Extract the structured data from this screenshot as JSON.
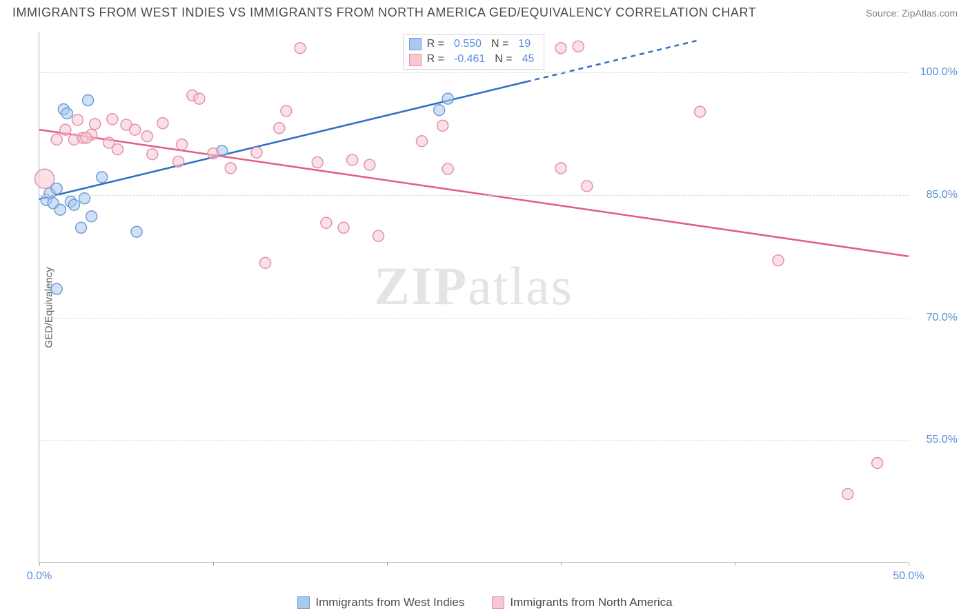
{
  "header": {
    "title": "IMMIGRANTS FROM WEST INDIES VS IMMIGRANTS FROM NORTH AMERICA GED/EQUIVALENCY CORRELATION CHART",
    "source": "Source: ZipAtlas.com"
  },
  "chart": {
    "type": "scatter",
    "y_label": "GED/Equivalency",
    "background_color": "#ffffff",
    "grid_color": "#d8d8d8",
    "axis_color": "#b0b0b0",
    "tick_color": "#5a8ed8",
    "xlim": [
      0,
      50
    ],
    "ylim": [
      40,
      105
    ],
    "x_ticks": [
      {
        "pos": 0.0,
        "label": "0.0%"
      },
      {
        "pos": 50.0,
        "label": "50.0%"
      }
    ],
    "x_minor_ticks": [
      10,
      20,
      30,
      40
    ],
    "y_gridlines": [
      {
        "val": 100.0,
        "label": "100.0%"
      },
      {
        "val": 85.0,
        "label": "85.0%"
      },
      {
        "val": 70.0,
        "label": "70.0%"
      },
      {
        "val": 55.0,
        "label": "55.0%"
      }
    ],
    "watermark": "ZIPatlas",
    "series": [
      {
        "key": "west_indies",
        "label": "Immigrants from West Indies",
        "fill": "#a9c9ee",
        "stroke": "#6f9dd6",
        "line_color": "#2f6fc2",
        "line_width": 2.5,
        "marker_r": 8,
        "R": "0.550",
        "N": "19",
        "trend": {
          "x1": 0,
          "y1": 84.5,
          "x2": 38,
          "y2": 104.0,
          "dash_after_x": 28
        },
        "points": [
          {
            "x": 0.4,
            "y": 84.4
          },
          {
            "x": 0.6,
            "y": 85.2
          },
          {
            "x": 0.8,
            "y": 84.0
          },
          {
            "x": 1.0,
            "y": 85.8
          },
          {
            "x": 1.2,
            "y": 83.2
          },
          {
            "x": 1.4,
            "y": 95.5
          },
          {
            "x": 1.6,
            "y": 95.0
          },
          {
            "x": 1.8,
            "y": 84.2
          },
          {
            "x": 2.0,
            "y": 83.8
          },
          {
            "x": 2.4,
            "y": 81.0
          },
          {
            "x": 2.6,
            "y": 84.6
          },
          {
            "x": 2.8,
            "y": 96.6
          },
          {
            "x": 3.0,
            "y": 82.4
          },
          {
            "x": 3.6,
            "y": 87.2
          },
          {
            "x": 5.6,
            "y": 80.5
          },
          {
            "x": 10.5,
            "y": 90.4
          },
          {
            "x": 1.0,
            "y": 73.5
          },
          {
            "x": 23.0,
            "y": 95.4
          },
          {
            "x": 23.5,
            "y": 96.8
          }
        ]
      },
      {
        "key": "north_america",
        "label": "Immigrants from North America",
        "fill": "#f6c7d3",
        "stroke": "#e690a8",
        "line_color": "#e35b82",
        "line_width": 2.5,
        "marker_r": 8,
        "R": "-0.461",
        "N": "45",
        "trend": {
          "x1": 0,
          "y1": 93.0,
          "x2": 50,
          "y2": 77.5,
          "dash_after_x": 999
        },
        "points": [
          {
            "x": 0.3,
            "y": 87.0,
            "r": 14
          },
          {
            "x": 1.0,
            "y": 91.8
          },
          {
            "x": 1.5,
            "y": 93.0
          },
          {
            "x": 2.0,
            "y": 91.8
          },
          {
            "x": 2.2,
            "y": 94.2
          },
          {
            "x": 2.5,
            "y": 92.0
          },
          {
            "x": 3.0,
            "y": 92.4
          },
          {
            "x": 3.2,
            "y": 93.7
          },
          {
            "x": 2.7,
            "y": 92.0
          },
          {
            "x": 4.0,
            "y": 91.4
          },
          {
            "x": 4.5,
            "y": 90.6
          },
          {
            "x": 5.0,
            "y": 93.6
          },
          {
            "x": 5.5,
            "y": 93.0
          },
          {
            "x": 6.2,
            "y": 92.2
          },
          {
            "x": 7.1,
            "y": 93.8
          },
          {
            "x": 8.2,
            "y": 91.2
          },
          {
            "x": 8.8,
            "y": 97.2
          },
          {
            "x": 9.2,
            "y": 96.8
          },
          {
            "x": 10.0,
            "y": 90.1
          },
          {
            "x": 11.0,
            "y": 88.3
          },
          {
            "x": 12.5,
            "y": 90.2
          },
          {
            "x": 13.0,
            "y": 76.7
          },
          {
            "x": 13.8,
            "y": 93.2
          },
          {
            "x": 14.2,
            "y": 95.3
          },
          {
            "x": 15.0,
            "y": 103.0
          },
          {
            "x": 16.0,
            "y": 89.0
          },
          {
            "x": 16.5,
            "y": 81.6
          },
          {
            "x": 17.5,
            "y": 81.0
          },
          {
            "x": 18.0,
            "y": 89.3
          },
          {
            "x": 19.5,
            "y": 80.0
          },
          {
            "x": 22.0,
            "y": 91.6
          },
          {
            "x": 23.2,
            "y": 93.5
          },
          {
            "x": 23.5,
            "y": 88.2
          },
          {
            "x": 30.0,
            "y": 103.0
          },
          {
            "x": 30.0,
            "y": 88.3
          },
          {
            "x": 31.5,
            "y": 86.1
          },
          {
            "x": 31.0,
            "y": 103.2
          },
          {
            "x": 38.0,
            "y": 95.2
          },
          {
            "x": 48.2,
            "y": 52.2
          },
          {
            "x": 46.5,
            "y": 48.4
          },
          {
            "x": 42.5,
            "y": 77.0
          },
          {
            "x": 8.0,
            "y": 89.1
          },
          {
            "x": 6.5,
            "y": 90.0
          },
          {
            "x": 4.2,
            "y": 94.3
          },
          {
            "x": 19.0,
            "y": 88.7
          }
        ]
      }
    ]
  }
}
